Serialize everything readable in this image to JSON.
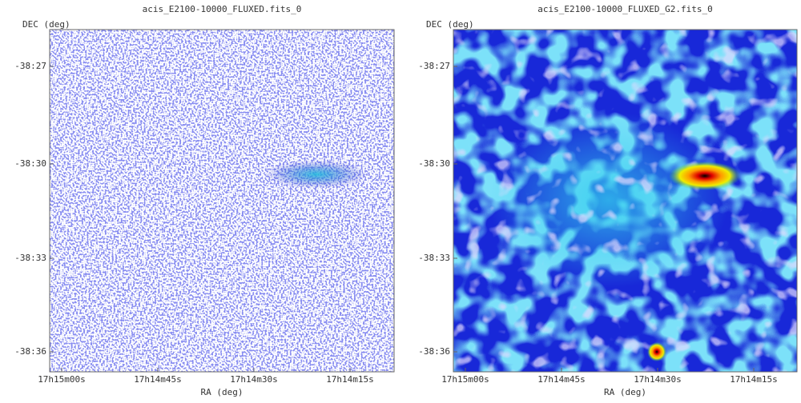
{
  "panels": [
    {
      "title": "acis_E2100-10000_FLUXED.fits_0",
      "y_label": "DEC (deg)",
      "x_label": "RA (deg)",
      "y_ticks": [
        "-38:27",
        "-38:30",
        "-38:33",
        "-38:36"
      ],
      "x_ticks": [
        "17h15m00s",
        "17h14m45s",
        "17h14m30s",
        "17h14m15s"
      ]
    },
    {
      "title": "acis_E2100-10000_FLUXED_G2.fits_0",
      "y_label": "DEC (deg)",
      "x_label": "RA (deg)",
      "y_ticks": [
        "-38:27",
        "-38:30",
        "-38:33",
        "-38:36"
      ],
      "x_ticks": [
        "17h15m00s",
        "17h14m45s",
        "17h14m30s",
        "17h14m15s"
      ]
    }
  ]
}
